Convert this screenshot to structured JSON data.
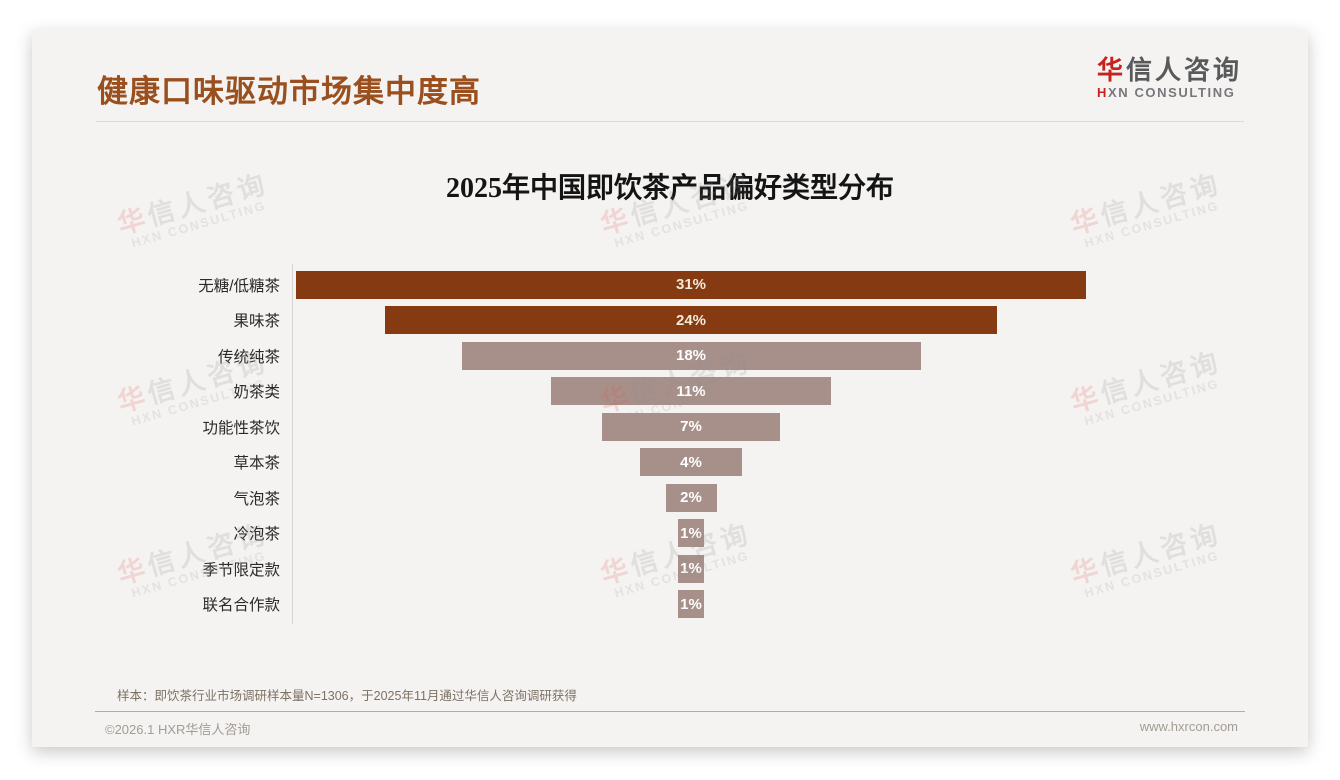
{
  "header": {
    "title": "健康口味驱动市场集中度高",
    "logo": {
      "cn_red": "华",
      "cn_rest": "信人咨询",
      "en_red": "H",
      "en_rest": "XN CONSULTING"
    }
  },
  "chart_data": {
    "type": "bar",
    "variant": "horizontal_centered_funnel",
    "title": "2025年中国即饮茶产品偏好类型分布",
    "categories": [
      "无糖/低糖茶",
      "果味茶",
      "传统纯茶",
      "奶茶类",
      "功能性茶饮",
      "草本茶",
      "气泡茶",
      "冷泡茶",
      "季节限定款",
      "联名合作款"
    ],
    "values": [
      31,
      24,
      18,
      11,
      7,
      4,
      2,
      1,
      1,
      1
    ],
    "unit": "%",
    "value_labels": [
      "31%",
      "24%",
      "18%",
      "11%",
      "7%",
      "4%",
      "2%",
      "1%",
      "1%",
      "1%"
    ],
    "bar_colors": [
      "#853a12",
      "#853a12",
      "#a8908a",
      "#a8908a",
      "#a8908a",
      "#a8908a",
      "#a8908a",
      "#a8908a",
      "#a8908a",
      "#a8908a"
    ],
    "value_label_colors": [
      "#f2ebd8",
      "#f2ebd8",
      "#ffffff",
      "#ffffff",
      "#ffffff",
      "#ffffff",
      "#ffffff",
      "#ffffff",
      "#ffffff",
      "#ffffff"
    ],
    "xlim": [
      0,
      31
    ],
    "gridlines": false,
    "legend": false
  },
  "watermark": {
    "cn_red": "华",
    "cn_rest": "信人咨询",
    "en": "HXN CONSULTING"
  },
  "footnote": "样本：即饮茶行业市场调研样本量N=1306，于2025年11月通过华信人咨询调研获得",
  "footer": {
    "left": "©2026.1 HXR华信人咨询",
    "right": "www.hxrcon.com"
  },
  "colors": {
    "title_brown": "#9a4f1e",
    "bar_dark": "#853a12",
    "bar_light": "#a8908a",
    "slide_background": "#f4f3f1",
    "logo_red": "#c8221f"
  }
}
